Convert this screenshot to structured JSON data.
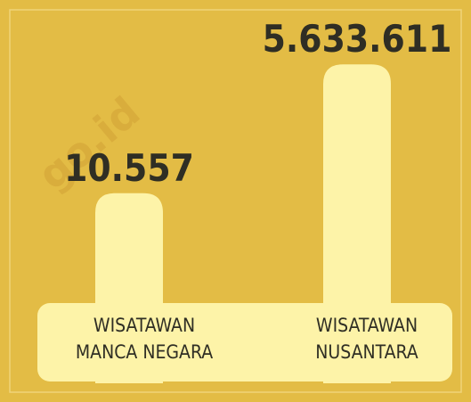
{
  "chart_data": {
    "type": "bar",
    "categories": [
      "WISATAWAN\nMANCA NEGARA",
      "WISATAWAN\nNUSANTARA"
    ],
    "values": [
      10557,
      5633611
    ],
    "value_labels": [
      "10.557",
      "5.633.611"
    ],
    "color": "#fdf3a8",
    "log_scale": true,
    "ylim": [
      1,
      10000000
    ],
    "watermark": "go.id"
  }
}
